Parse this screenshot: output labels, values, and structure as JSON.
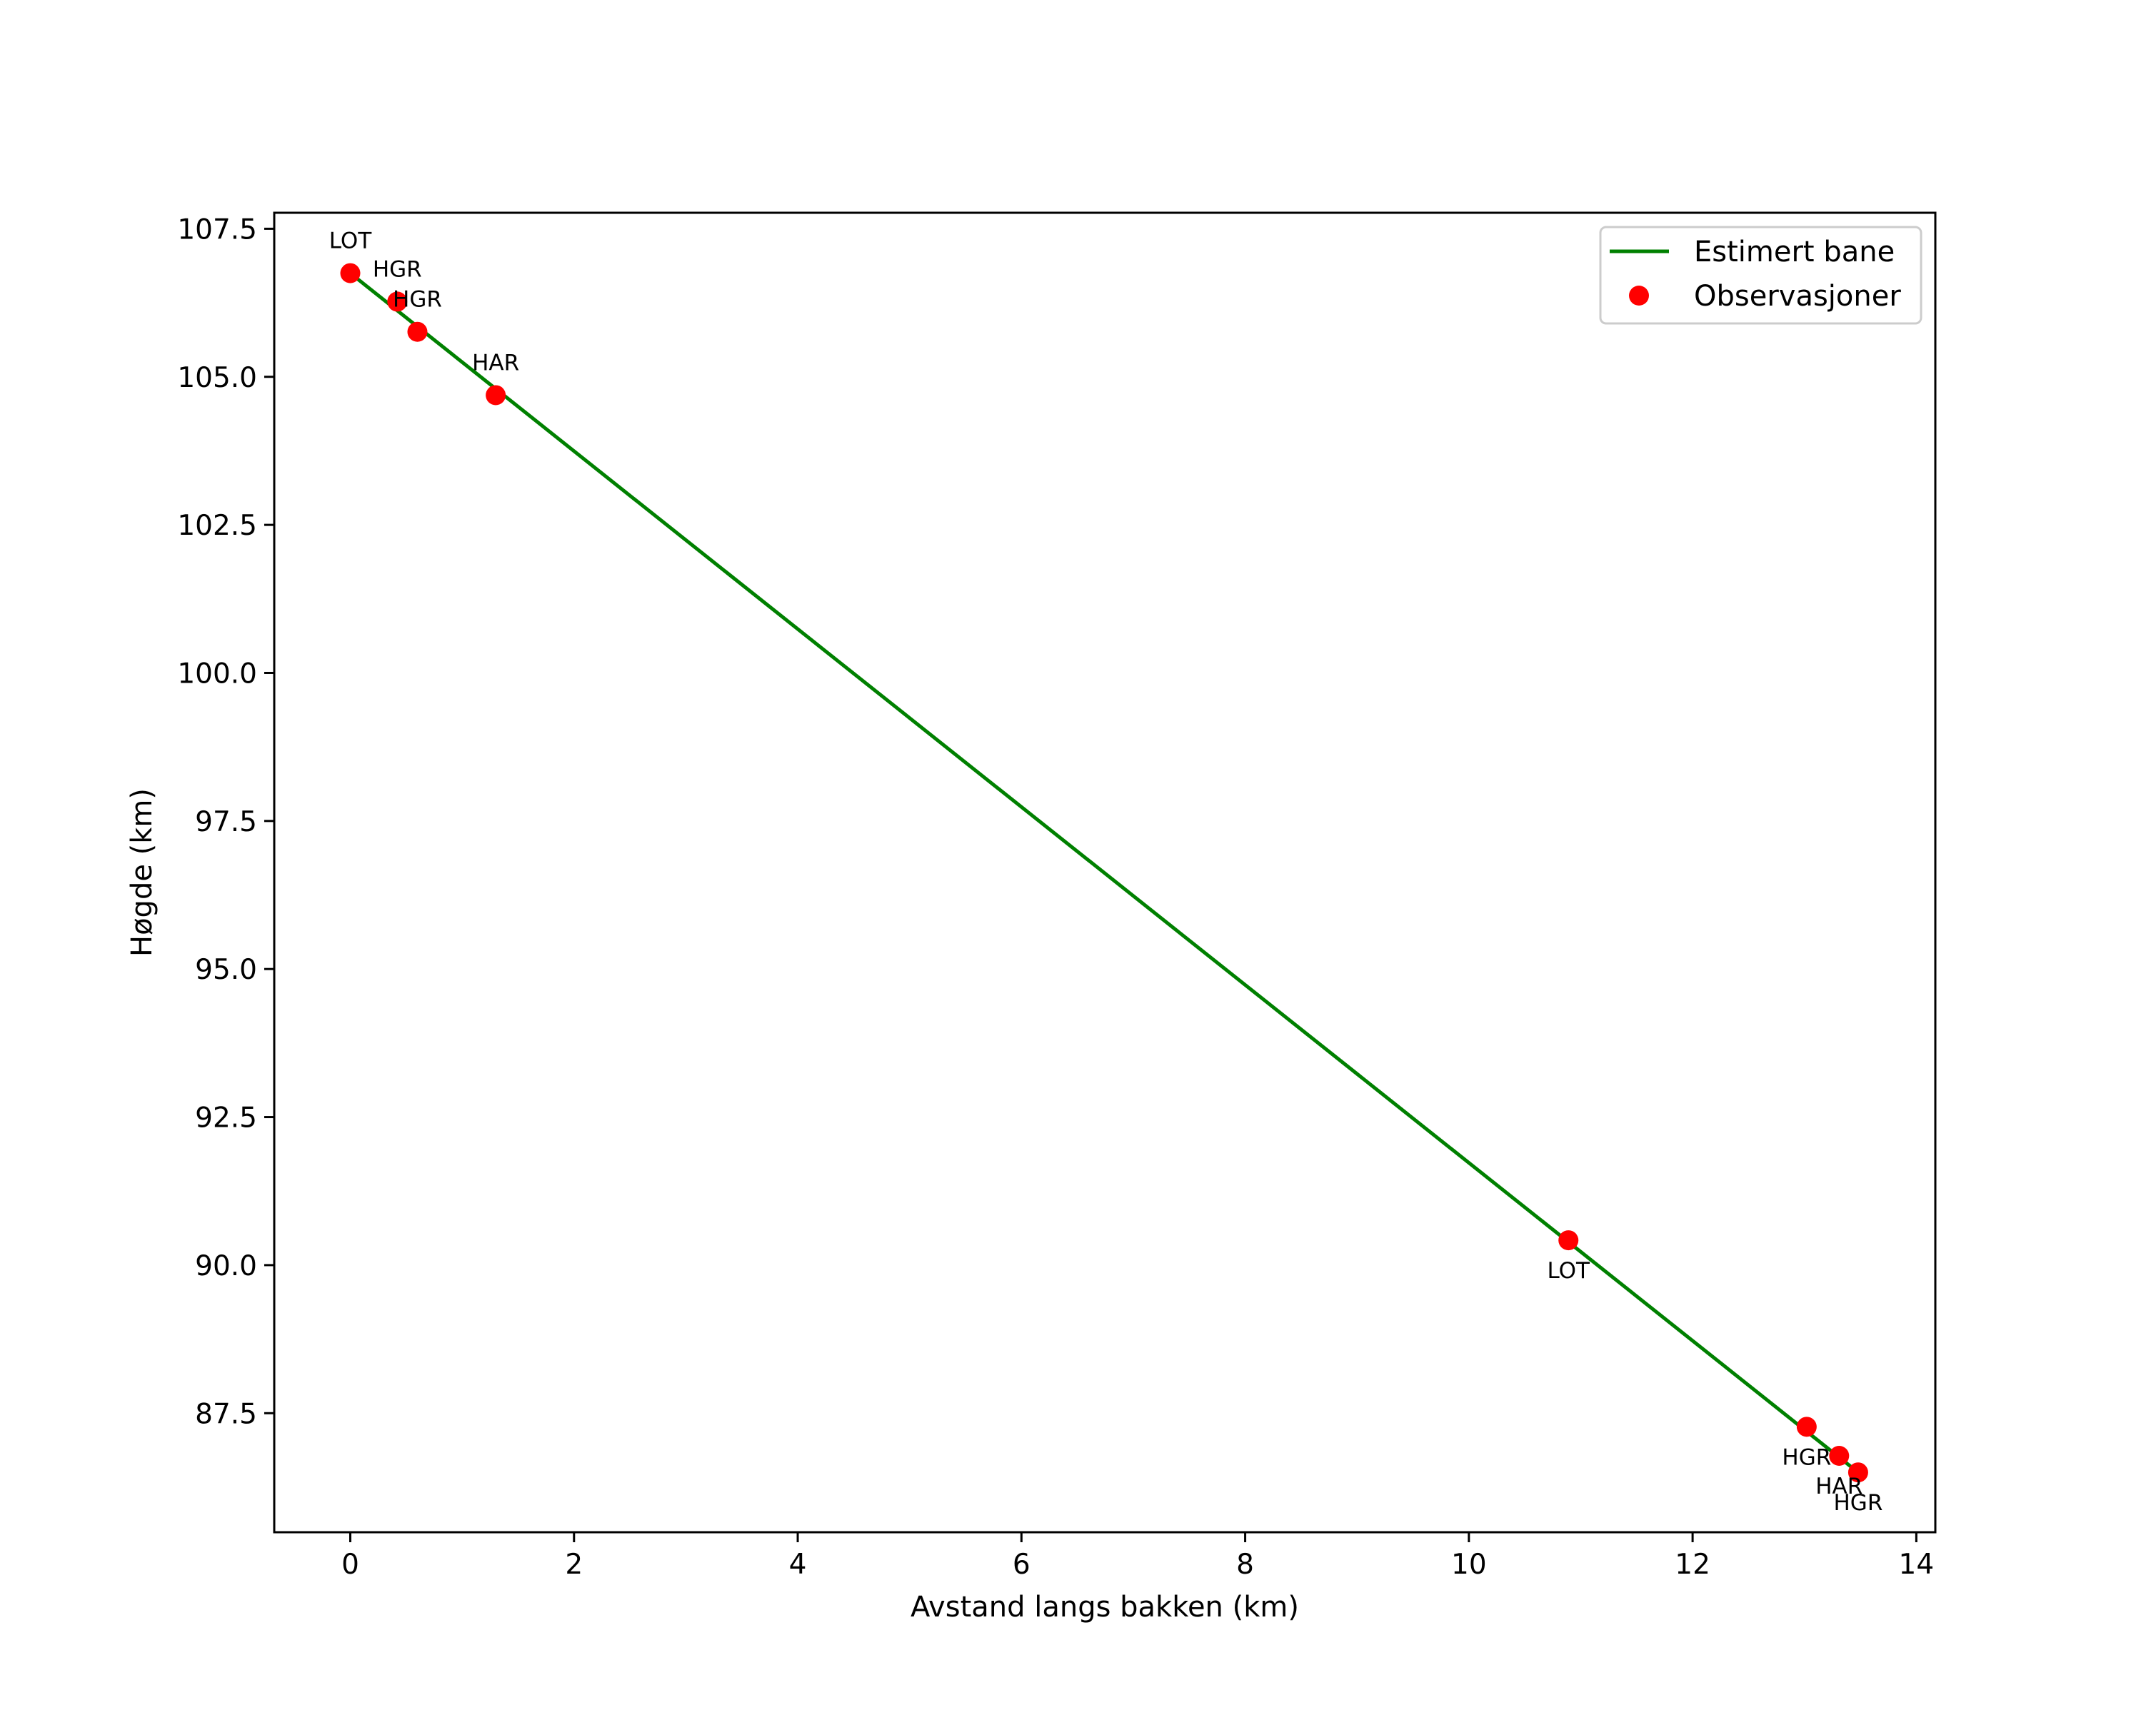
{
  "chart_data": {
    "type": "line",
    "title": "",
    "xlabel": "Avstand langs bakken (km)",
    "ylabel": "Høgde (km)",
    "xlim": [
      -0.68,
      14.17
    ],
    "ylim": [
      85.49,
      107.77
    ],
    "xticks": [
      0,
      2,
      4,
      6,
      8,
      10,
      12,
      14
    ],
    "xtick_labels": [
      "0",
      "2",
      "4",
      "6",
      "8",
      "10",
      "12",
      "14"
    ],
    "yticks": [
      87.5,
      90.0,
      92.5,
      95.0,
      97.5,
      100.0,
      102.5,
      105.0,
      107.5
    ],
    "ytick_labels": [
      "87.5",
      "90.0",
      "92.5",
      "95.0",
      "97.5",
      "100.0",
      "102.5",
      "105.0",
      "107.5"
    ],
    "grid": false,
    "legend_position": "upper right",
    "series": [
      {
        "name": "Estimert bane",
        "kind": "line",
        "color": "#008000",
        "x": [
          0.0,
          13.48
        ],
        "y": [
          106.75,
          86.5
        ]
      },
      {
        "name": "Observasjoner",
        "kind": "scatter",
        "color": "#ff0000",
        "points": [
          {
            "x": 0.0,
            "y": 106.75,
            "label": "LOT",
            "label_pos": "above"
          },
          {
            "x": 0.42,
            "y": 106.27,
            "label": "HGR",
            "label_pos": "above"
          },
          {
            "x": 0.6,
            "y": 105.76,
            "label": "HGR",
            "label_pos": "above"
          },
          {
            "x": 1.3,
            "y": 104.69,
            "label": "HAR",
            "label_pos": "above"
          },
          {
            "x": 10.89,
            "y": 90.42,
            "label": "LOT",
            "label_pos": "below"
          },
          {
            "x": 13.02,
            "y": 87.27,
            "label": "HGR",
            "label_pos": "below"
          },
          {
            "x": 13.31,
            "y": 86.78,
            "label": "HAR",
            "label_pos": "below"
          },
          {
            "x": 13.48,
            "y": 86.5,
            "label": "HGR",
            "label_pos": "below"
          }
        ]
      }
    ]
  },
  "legend": {
    "items": [
      {
        "label": "Estimert bane",
        "icon": "line-swatch",
        "color": "#008000"
      },
      {
        "label": "Observasjoner",
        "icon": "dot-swatch",
        "color": "#ff0000"
      }
    ]
  },
  "axes": {
    "xlabel": "Avstand langs bakken (km)",
    "ylabel": "Høgde (km)"
  }
}
